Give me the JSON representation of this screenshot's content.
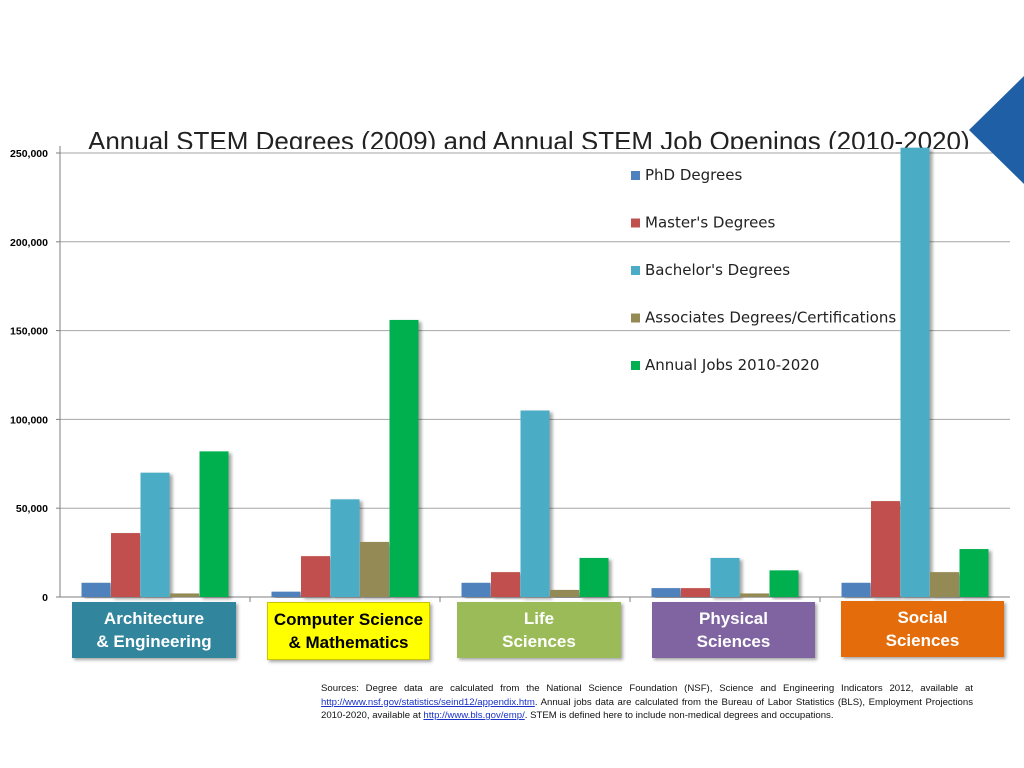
{
  "slide": {
    "title": "Annual STEM Degrees (2009) and Annual STEM Job Openings (2010-2020)"
  },
  "chart_data": {
    "type": "bar",
    "title": "Annual STEM Degrees (2009) and Annual STEM Job Openings (2010-2020)",
    "xlabel": "",
    "ylabel": "",
    "ylim": [
      0,
      250000
    ],
    "yticks": [
      0,
      50000,
      100000,
      150000,
      200000,
      250000
    ],
    "ytick_labels": [
      "0",
      "50,000",
      "100,000",
      "150,000",
      "200,000",
      "250,000"
    ],
    "grid": true,
    "legend_position": "top-right",
    "categories": [
      "Architecture\n& Engineering",
      "Computer Science\n& Mathematics",
      "Life\nSciences",
      "Physical\nSciences",
      "Social\nSciences"
    ],
    "category_box_colors": [
      {
        "bg": "#31859c",
        "fg": "#ffffff"
      },
      {
        "bg": "#ffff00",
        "fg": "#000000"
      },
      {
        "bg": "#9bbb59",
        "fg": "#ffffff"
      },
      {
        "bg": "#8064a2",
        "fg": "#ffffff"
      },
      {
        "bg": "#e46c0a",
        "fg": "#ffffff"
      }
    ],
    "series": [
      {
        "name": "PhD Degrees",
        "color": "#4f81bd",
        "values": [
          8000,
          3000,
          8000,
          5000,
          8000
        ]
      },
      {
        "name": "Master's Degrees",
        "color": "#c0504d",
        "values": [
          36000,
          23000,
          14000,
          5000,
          54000
        ]
      },
      {
        "name": "Bachelor's Degrees",
        "color": "#4bacc6",
        "values": [
          70000,
          55000,
          105000,
          22000,
          253000
        ]
      },
      {
        "name": "Associates Degrees/Certifications",
        "color": "#948a54",
        "values": [
          2000,
          31000,
          4000,
          2000,
          14000
        ]
      },
      {
        "name": "Annual Jobs 2010-2020",
        "color": "#00b050",
        "values": [
          82000,
          156000,
          22000,
          15000,
          27000
        ]
      }
    ]
  },
  "sources": {
    "part1": "Sources: Degree data are calculated from the National Science Foundation (NSF), Science and Engineering Indicators 2012, available at ",
    "link1": "http://www.nsf.gov/statistics/seind12/appendix.htm",
    "part2": ". Annual jobs data are calculated from the Bureau of Labor Statistics (BLS), Employment Projections 2010-2020, available at ",
    "link2": "http://www.bls.gov/emp/",
    "part3": ". STEM is defined here to include non-medical degrees and occupations."
  },
  "colors": {
    "corner_triangle": "#1f5fa6",
    "gridline": "#a6a6a6"
  }
}
